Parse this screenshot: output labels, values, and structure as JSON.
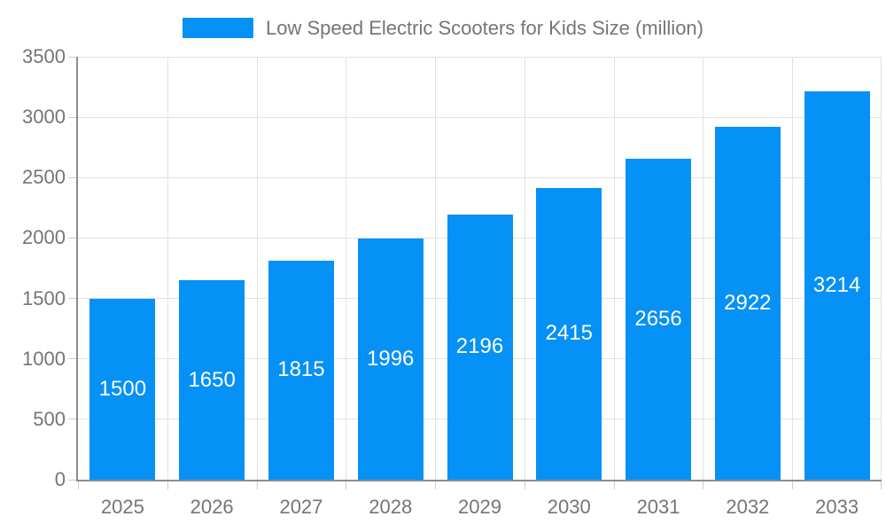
{
  "chart_data": {
    "type": "bar",
    "title": "Low Speed Electric Scooters for Kids Size (million)",
    "categories": [
      "2025",
      "2026",
      "2027",
      "2028",
      "2029",
      "2030",
      "2031",
      "2032",
      "2033"
    ],
    "values": [
      1500,
      1650,
      1815,
      1996,
      2196,
      2415,
      2656,
      2922,
      3214
    ],
    "xlabel": "",
    "ylabel": "",
    "ylim": [
      0,
      3500
    ],
    "ytick_step": 500,
    "yticks": [
      "0",
      "500",
      "1000",
      "1500",
      "2000",
      "2500",
      "3000",
      "3500"
    ],
    "grid": true,
    "legend_position": "top",
    "bar_label_position": "inside-center",
    "colors": {
      "bar": "#0591F5",
      "bar_label": "#FFFFFF",
      "axis_line": "#8C8C8C",
      "grid_line": "#E2E2E2",
      "tick_line": "#CCCCCC",
      "tick_text": "#757575",
      "legend_text": "#757575",
      "background": "#FFFFFF"
    }
  }
}
